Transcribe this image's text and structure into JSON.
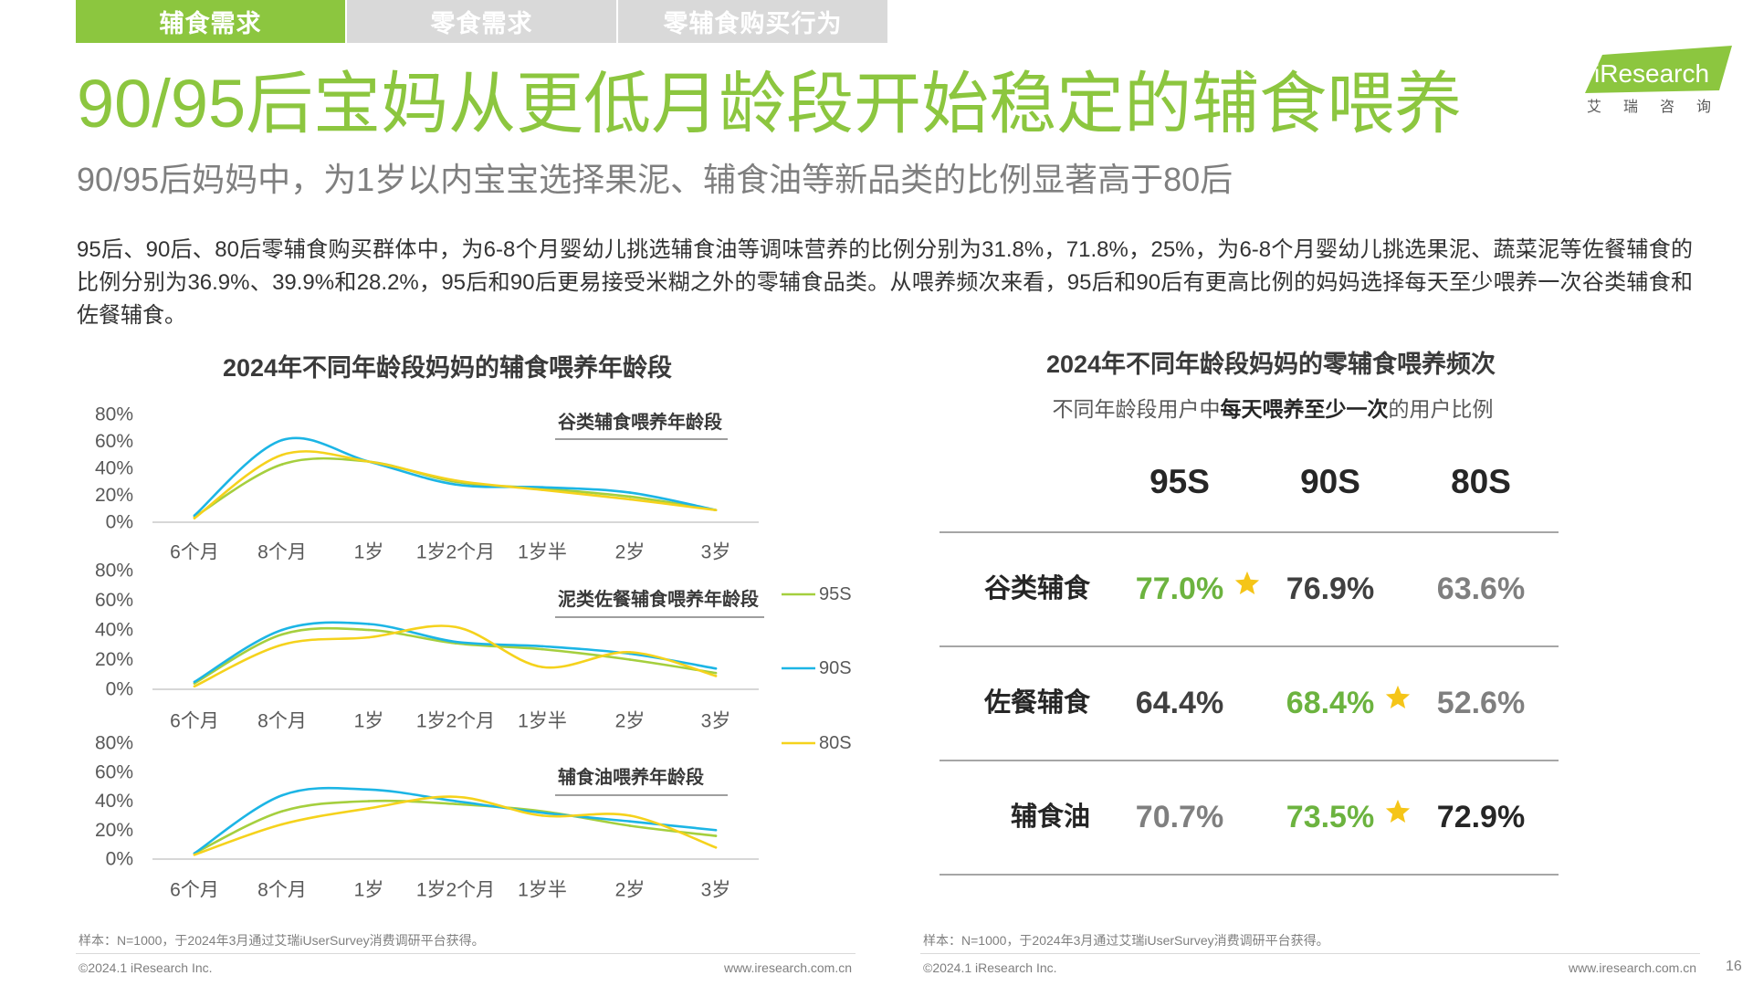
{
  "colors": {
    "brand": "#8cc63f",
    "tab_inactive": "#d9d9d9",
    "body_text": "#333333",
    "subtitle_text": "#7f7f7f",
    "star": "#f5c518"
  },
  "tabs": [
    {
      "label": "辅食需求",
      "active": true
    },
    {
      "label": "零食需求",
      "active": false
    },
    {
      "label": "零辅食购买行为",
      "active": false
    }
  ],
  "logo": {
    "text": "iResearch",
    "subtext": "艾瑞咨询"
  },
  "title": "90/95后宝妈从更低月龄段开始稳定的辅食喂养",
  "subtitle": "90/95后妈妈中，为1岁以内宝宝选择果泥、辅食油等新品类的比例显著高于80后",
  "body": "95后、90后、80后零辅食购买群体中，为6-8个月婴幼儿挑选辅食油等调味营养的比例分别为31.8%，71.8%，25%，为6-8个月婴幼儿挑选果泥、蔬菜泥等佐餐辅食的比例分别为36.9%、39.9%和28.2%，95后和90后更易接受米糊之外的零辅食品类。从喂养频次来看，95后和90后有更高比例的妈妈选择每天至少喂养一次谷类辅食和佐餐辅食。",
  "chart_data": [
    {
      "type": "line",
      "title": "2024年不同年龄段妈妈的辅食喂养年龄段",
      "categories": [
        "6个月",
        "8个月",
        "1岁",
        "1岁2个月",
        "1岁半",
        "2岁",
        "3岁"
      ],
      "y_ticks": [
        "80%",
        "60%",
        "40%",
        "20%",
        "0%"
      ],
      "ylim": [
        0,
        80
      ],
      "grid": false,
      "legend": {
        "position": "right",
        "items": [
          {
            "name": "95S",
            "color": "#a5cf3e"
          },
          {
            "name": "90S",
            "color": "#1cb5e5"
          },
          {
            "name": "80S",
            "color": "#f5d21c"
          }
        ]
      },
      "panels": [
        {
          "title": "谷类辅食喂养年龄段",
          "values": {
            "95S": [
              4,
              43,
              45,
              30,
              25,
              19,
              9
            ],
            "90S": [
              5,
              61,
              45,
              28,
              26,
              22,
              9
            ],
            "80S": [
              3,
              50,
              45,
              31,
              24,
              17,
              9
            ]
          }
        },
        {
          "title": "泥类佐餐辅食喂养年龄段",
          "values": {
            "95S": [
              4,
              37,
              40,
              31,
              27,
              20,
              11
            ],
            "90S": [
              5,
              40,
              44,
              32,
              29,
              24,
              14
            ],
            "80S": [
              2,
              30,
              35,
              42,
              15,
              25,
              9
            ]
          }
        },
        {
          "title": "辅食油喂养年龄段",
          "values": {
            "95S": [
              4,
              33,
              40,
              38,
              33,
              23,
              16
            ],
            "90S": [
              4,
              44,
              48,
              40,
              32,
              26,
              20
            ],
            "80S": [
              3,
              24,
              35,
              43,
              30,
              30,
              8
            ]
          }
        }
      ]
    },
    {
      "type": "table",
      "title": "2024年不同年龄段妈妈的零辅食喂养频次",
      "subtitle_parts": [
        "不同年龄段用户中",
        "每天喂养至少一次",
        "的用户比例"
      ],
      "columns": [
        "95S",
        "90S",
        "80S"
      ],
      "rows": [
        {
          "label": "谷类辅食",
          "values": [
            "77.0%",
            "76.9%",
            "63.6%"
          ],
          "colors": [
            "#6cb33f",
            "#404040",
            "#7f7f7f"
          ],
          "star_column": 0
        },
        {
          "label": "佐餐辅食",
          "values": [
            "64.4%",
            "68.4%",
            "52.6%"
          ],
          "colors": [
            "#404040",
            "#6cb33f",
            "#7f7f7f"
          ],
          "star_column": 1
        },
        {
          "label": "辅食油",
          "values": [
            "70.7%",
            "73.5%",
            "72.9%"
          ],
          "colors": [
            "#7f7f7f",
            "#6cb33f",
            "#262626"
          ],
          "star_column": 1
        }
      ]
    }
  ],
  "footer": {
    "source_note": "样本：N=1000，于2024年3月通过艾瑞iUserSurvey消费调研平台获得。",
    "copyright": "©2024.1 iResearch Inc.",
    "website": "www.iresearch.com.cn",
    "page_number": "16"
  }
}
